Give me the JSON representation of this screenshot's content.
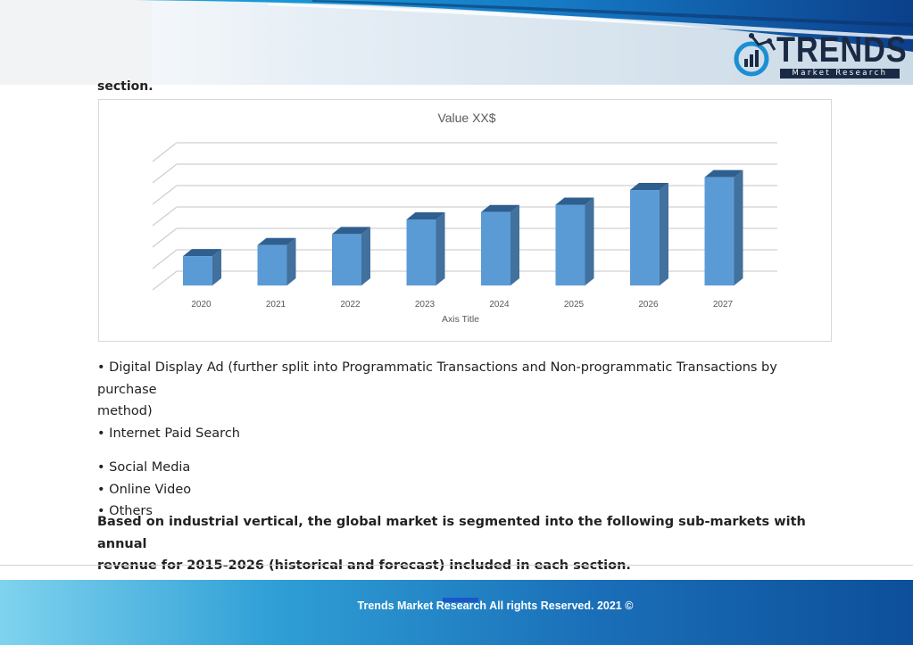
{
  "header": {
    "logo": {
      "name": "TRENDS",
      "tagline": "Market Research"
    }
  },
  "section_tail": "section.",
  "chart_data": {
    "type": "bar",
    "title": "Value XX$",
    "xlabel": "Axis Title",
    "ylabel": "",
    "categories": [
      "2020",
      "2021",
      "2022",
      "2023",
      "2024",
      "2025",
      "2026",
      "2027"
    ],
    "values": [
      1.6,
      2.2,
      2.8,
      3.6,
      4.0,
      4.4,
      5.2,
      5.9
    ],
    "ylim": [
      0,
      7
    ],
    "grid": true,
    "style": "3d-column",
    "colors": {
      "front": "#5b9bd5",
      "side": "#41719c",
      "top": "#2e5f8f"
    }
  },
  "bullets": {
    "item1_line1": "• Digital Display Ad (further split into Programmatic Transactions and Non-programmatic Transactions by purchase",
    "item1_line2": "method)",
    "item2": "• Internet Paid Search",
    "item3": "• Social Media",
    "item4": "• Online Video",
    "item5": "• Others"
  },
  "paragraph": {
    "line1": "Based on industrial vertical, the global market is segmented into the following sub-markets with annual",
    "line2": "revenue for 2015-2026 (historical and forecast) included in each section."
  },
  "footer": {
    "text": "Trends Market Research All rights Reserved. 2021 ©"
  }
}
